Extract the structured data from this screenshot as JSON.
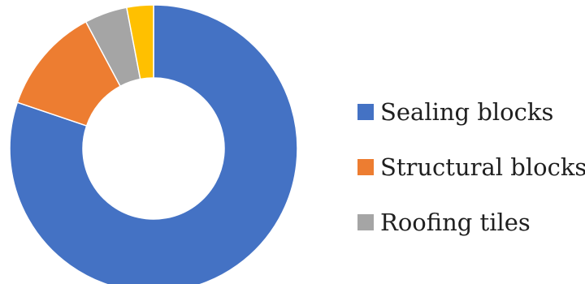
{
  "chart_data": {
    "type": "pie",
    "title": "",
    "legend": "right",
    "categories": [
      "Sealing blocks",
      "Structural blocks",
      "Roofing tiles",
      ""
    ],
    "values": [
      80.2,
      12.0,
      4.8,
      3.0
    ],
    "colors": [
      "#4472C4",
      "#ED7D31",
      "#A5A5A5",
      "#FFC000"
    ],
    "legend_entries": [
      "Sealing blocks",
      "Structural blocks",
      "Roofing tiles"
    ]
  }
}
